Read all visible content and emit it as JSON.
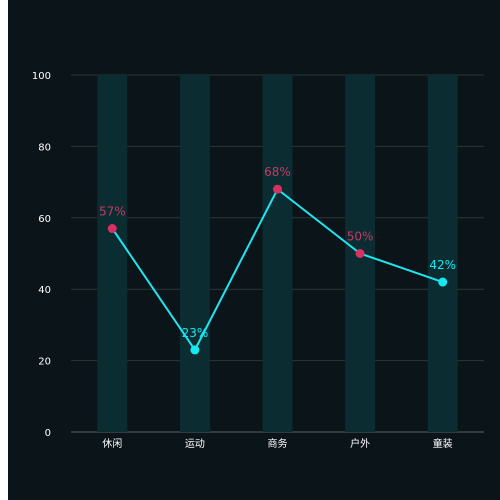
{
  "chart_data": {
    "type": "bar+line",
    "categories": [
      "休闲",
      "运动",
      "商务",
      "户外",
      "童装"
    ],
    "background_bars": {
      "values": [
        100,
        100,
        100,
        100,
        100
      ],
      "color": "#0b2c30"
    },
    "series": [
      {
        "values": [
          57,
          23,
          68,
          50,
          42
        ],
        "labels": [
          "57%",
          "23%",
          "68%",
          "50%",
          "42%"
        ],
        "line_color": "#1fe5f2"
      }
    ],
    "point_colors": [
      "#d63162",
      "#14e9f0",
      "#d63162",
      "#d63162",
      "#14e9f0"
    ],
    "ylim": [
      0,
      100
    ],
    "yticks": [
      0,
      20,
      40,
      60,
      80,
      100
    ],
    "grid": true,
    "colors": {
      "background": "#0b1418",
      "grid": "#2a3639",
      "axis_text": "#ffffff",
      "label_pink": "#c23a66",
      "label_cyan": "#14e9f0"
    }
  }
}
